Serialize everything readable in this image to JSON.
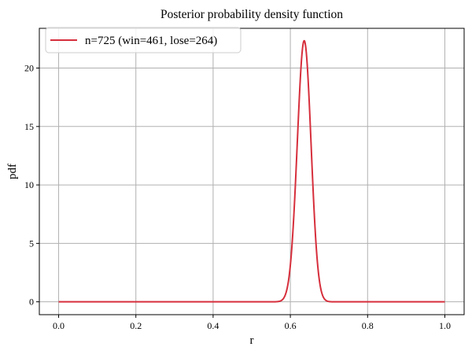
{
  "chart_data": {
    "type": "line",
    "title": "Posterior probability density function",
    "xlabel": "r",
    "ylabel": "pdf",
    "xlim": [
      -0.05,
      1.05
    ],
    "ylim": [
      -1.1,
      23.4
    ],
    "xticks": [
      0.0,
      0.2,
      0.4,
      0.6,
      0.8,
      1.0
    ],
    "xtick_labels": [
      "0.0",
      "0.2",
      "0.4",
      "0.6",
      "0.8",
      "1.0"
    ],
    "yticks": [
      0,
      5,
      10,
      15,
      20
    ],
    "ytick_labels": [
      "0",
      "5",
      "10",
      "15",
      "20"
    ],
    "grid": true,
    "legend_position": "top-left",
    "series": [
      {
        "name": "n=725 (win=461, lose=264)",
        "color": "#d62f3c",
        "distribution": "beta",
        "alpha": 462,
        "beta": 265,
        "x_range": [
          0.0,
          1.0
        ]
      }
    ]
  }
}
